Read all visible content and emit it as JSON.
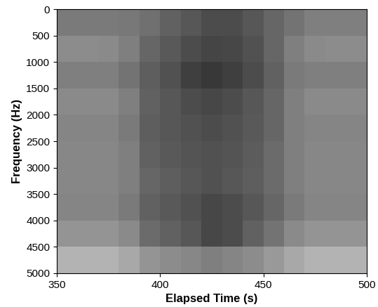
{
  "chart_data": {
    "type": "heatmap",
    "x_label": "Elapsed Time (s)",
    "y_label": "Frequency (Hz)",
    "x_edges": [
      350,
      360,
      370,
      380,
      390,
      400,
      410,
      420,
      430,
      440,
      450,
      460,
      470,
      480,
      490,
      500
    ],
    "y_edges": [
      0,
      500,
      1000,
      1500,
      2000,
      2500,
      3000,
      3500,
      4000,
      4500,
      5000
    ],
    "cells": [
      [
        0.52,
        0.52,
        0.52,
        0.53,
        0.56,
        0.62,
        0.66,
        0.7,
        0.7,
        0.66,
        0.6,
        0.55,
        0.5,
        0.5,
        0.5
      ],
      [
        0.45,
        0.45,
        0.46,
        0.5,
        0.6,
        0.65,
        0.7,
        0.73,
        0.72,
        0.68,
        0.6,
        0.5,
        0.46,
        0.45,
        0.45
      ],
      [
        0.5,
        0.5,
        0.5,
        0.55,
        0.63,
        0.68,
        0.75,
        0.78,
        0.75,
        0.7,
        0.62,
        0.52,
        0.5,
        0.5,
        0.5
      ],
      [
        0.46,
        0.46,
        0.46,
        0.5,
        0.62,
        0.66,
        0.7,
        0.72,
        0.7,
        0.66,
        0.6,
        0.5,
        0.46,
        0.46,
        0.46
      ],
      [
        0.48,
        0.48,
        0.48,
        0.52,
        0.63,
        0.66,
        0.68,
        0.7,
        0.68,
        0.65,
        0.6,
        0.5,
        0.48,
        0.48,
        0.48
      ],
      [
        0.47,
        0.47,
        0.47,
        0.5,
        0.62,
        0.65,
        0.67,
        0.68,
        0.67,
        0.64,
        0.58,
        0.5,
        0.47,
        0.47,
        0.47
      ],
      [
        0.47,
        0.47,
        0.47,
        0.5,
        0.6,
        0.63,
        0.66,
        0.68,
        0.66,
        0.63,
        0.58,
        0.5,
        0.47,
        0.47,
        0.47
      ],
      [
        0.48,
        0.48,
        0.48,
        0.52,
        0.62,
        0.65,
        0.68,
        0.72,
        0.7,
        0.66,
        0.6,
        0.52,
        0.48,
        0.48,
        0.48
      ],
      [
        0.42,
        0.42,
        0.42,
        0.46,
        0.58,
        0.62,
        0.66,
        0.72,
        0.7,
        0.62,
        0.55,
        0.46,
        0.42,
        0.42,
        0.42
      ],
      [
        0.3,
        0.3,
        0.3,
        0.34,
        0.42,
        0.45,
        0.47,
        0.5,
        0.48,
        0.45,
        0.4,
        0.34,
        0.3,
        0.3,
        0.3
      ]
    ],
    "xlim": [
      350,
      500
    ],
    "xticks": [
      350,
      400,
      450,
      500
    ],
    "ylim": [
      5000,
      0
    ],
    "yticks": [
      0,
      500,
      1000,
      1500,
      2000,
      2500,
      3000,
      3500,
      4000,
      4500,
      5000
    ]
  }
}
